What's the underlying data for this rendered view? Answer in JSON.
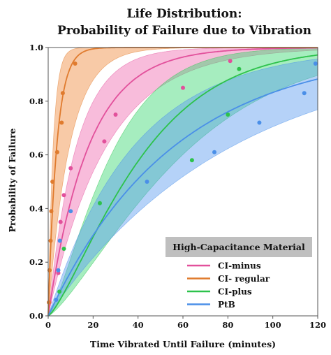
{
  "chart_data": {
    "type": "line",
    "title_lines": [
      "Life Distribution:",
      "Probability of Failure due to Vibration"
    ],
    "xlabel": "Time Vibrated Until Failure (minutes)",
    "ylabel": "Probability of Failure",
    "xlim": [
      0,
      120
    ],
    "ylim": [
      0,
      1
    ],
    "xticks": [
      "0",
      "20",
      "40",
      "60",
      "80",
      "100",
      "120"
    ],
    "yticks": [
      "0.0",
      "0.2",
      "0.4",
      "0.6",
      "0.8",
      "1.0"
    ],
    "grid": false,
    "legend": {
      "title": "High-Capacitance Material",
      "placement": "bottom-right"
    },
    "series": [
      {
        "name": "CI-minus",
        "color": "#e2509b",
        "band_color": "#f06bb0",
        "fit": {
          "model": "exponential",
          "scale": 18.0,
          "band_scales": [
            12.5,
            26.0
          ]
        },
        "points": [
          [
            0.6,
            0.05
          ],
          [
            4.5,
            0.16
          ],
          [
            5.5,
            0.35
          ],
          [
            7.0,
            0.45
          ],
          [
            10.0,
            0.55
          ],
          [
            25.0,
            0.65
          ],
          [
            30.0,
            0.75
          ],
          [
            60.0,
            0.85
          ],
          [
            81.0,
            0.95
          ]
        ]
      },
      {
        "name": "CI- regular",
        "color": "#e07b2e",
        "band_color": "#f08a3c",
        "fit": {
          "model": "exponential",
          "scale": 3.8,
          "band_scales": [
            2.2,
            9.5
          ]
        },
        "points": [
          [
            0.3,
            0.05
          ],
          [
            0.6,
            0.17
          ],
          [
            1.1,
            0.28
          ],
          [
            1.4,
            0.39
          ],
          [
            1.9,
            0.5
          ],
          [
            4.0,
            0.61
          ],
          [
            6.0,
            0.72
          ],
          [
            6.5,
            0.83
          ],
          [
            12.0,
            0.94
          ]
        ]
      },
      {
        "name": "CI-plus",
        "color": "#2dc24b",
        "band_color": "#3ad870",
        "fit": {
          "model": "weibull",
          "scale": 45.0,
          "shape": 1.3,
          "band_scales": [
            30.0,
            64.0
          ]
        },
        "points": [
          [
            5.0,
            0.09
          ],
          [
            7.0,
            0.25
          ],
          [
            23.0,
            0.42
          ],
          [
            64.0,
            0.58
          ],
          [
            80.0,
            0.75
          ],
          [
            85.0,
            0.92
          ]
        ]
      },
      {
        "name": "PtB",
        "color": "#4a8fe8",
        "band_color": "#5a9cf0",
        "fit": {
          "model": "exponential",
          "scale": 56.0,
          "band_scales": [
            38.0,
            82.0
          ]
        },
        "points": [
          [
            3.5,
            0.06
          ],
          [
            4.5,
            0.17
          ],
          [
            5.2,
            0.28
          ],
          [
            10.0,
            0.39
          ],
          [
            44.0,
            0.5
          ],
          [
            74.0,
            0.61
          ],
          [
            94.0,
            0.72
          ],
          [
            114.0,
            0.83
          ],
          [
            119.0,
            0.94
          ]
        ]
      }
    ]
  }
}
